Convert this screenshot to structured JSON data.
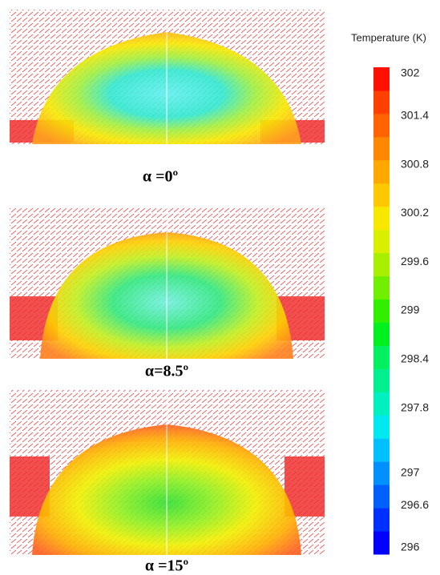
{
  "panels": [
    {
      "label": "α =0º"
    },
    {
      "label": "α=8.5º"
    },
    {
      "label": "α =15º"
    }
  ],
  "colorbar": {
    "title": "Temperature (K)",
    "range": [
      296,
      302
    ],
    "ticks": [
      302,
      301.4,
      300.8,
      300.2,
      299.6,
      299,
      298.4,
      297.8,
      297,
      296.6,
      296
    ],
    "colors": [
      "#0000ff",
      "#0030ff",
      "#0060ff",
      "#0090ff",
      "#00c0ff",
      "#00e8f0",
      "#00f0c0",
      "#00f090",
      "#00f060",
      "#00f020",
      "#30f000",
      "#70f000",
      "#a8f000",
      "#d8f000",
      "#f8e800",
      "#ffc800",
      "#ffa800",
      "#ff8800",
      "#ff6400",
      "#ff4000",
      "#ff1000"
    ]
  }
}
